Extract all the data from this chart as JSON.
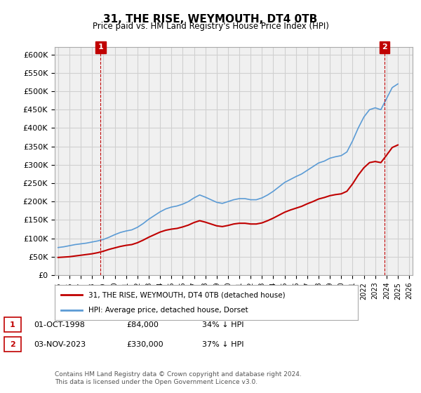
{
  "title": "31, THE RISE, WEYMOUTH, DT4 0TB",
  "subtitle": "Price paid vs. HM Land Registry's House Price Index (HPI)",
  "legend_entry1": "31, THE RISE, WEYMOUTH, DT4 0TB (detached house)",
  "legend_entry2": "HPI: Average price, detached house, Dorset",
  "annotation1_label": "1",
  "annotation1_date": "01-OCT-1998",
  "annotation1_price": "£84,000",
  "annotation1_hpi": "34% ↓ HPI",
  "annotation2_label": "2",
  "annotation2_date": "03-NOV-2023",
  "annotation2_price": "£330,000",
  "annotation2_hpi": "37% ↓ HPI",
  "footer": "Contains HM Land Registry data © Crown copyright and database right 2024.\nThis data is licensed under the Open Government Licence v3.0.",
  "hpi_color": "#5b9bd5",
  "price_color": "#c00000",
  "annotation_box_color": "#c00000",
  "grid_color": "#d0d0d0",
  "background_color": "#ffffff",
  "plot_bg_color": "#f0f0f0",
  "ylim": [
    0,
    620000
  ],
  "yticks": [
    0,
    50000,
    100000,
    150000,
    200000,
    250000,
    300000,
    350000,
    400000,
    450000,
    500000,
    550000,
    600000
  ],
  "xmin_year": 1995,
  "xmax_year": 2026,
  "xtick_years": [
    1995,
    1996,
    1997,
    1998,
    1999,
    2000,
    2001,
    2002,
    2003,
    2004,
    2005,
    2006,
    2007,
    2008,
    2009,
    2010,
    2011,
    2012,
    2013,
    2014,
    2015,
    2016,
    2017,
    2018,
    2019,
    2020,
    2021,
    2022,
    2023,
    2024,
    2025,
    2026
  ],
  "sale1_year": 1998.75,
  "sale1_value": 84000,
  "sale2_year": 2023.83,
  "sale2_value": 330000,
  "hpi_years": [
    1995,
    1995.5,
    1996,
    1996.5,
    1997,
    1997.5,
    1998,
    1998.5,
    1999,
    1999.5,
    2000,
    2000.5,
    2001,
    2001.5,
    2002,
    2002.5,
    2003,
    2003.5,
    2004,
    2004.5,
    2005,
    2005.5,
    2006,
    2006.5,
    2007,
    2007.5,
    2008,
    2008.5,
    2009,
    2009.5,
    2010,
    2010.5,
    2011,
    2011.5,
    2012,
    2012.5,
    2013,
    2013.5,
    2014,
    2014.5,
    2015,
    2015.5,
    2016,
    2016.5,
    2017,
    2017.5,
    2018,
    2018.5,
    2019,
    2019.5,
    2020,
    2020.5,
    2021,
    2021.5,
    2022,
    2022.5,
    2023,
    2023.5,
    2024,
    2024.5,
    2025
  ],
  "hpi_values": [
    75000,
    77000,
    80000,
    83000,
    85000,
    87000,
    90000,
    93000,
    97000,
    103000,
    110000,
    116000,
    120000,
    123000,
    130000,
    140000,
    152000,
    162000,
    172000,
    180000,
    185000,
    188000,
    193000,
    200000,
    210000,
    218000,
    212000,
    205000,
    198000,
    195000,
    200000,
    205000,
    208000,
    208000,
    205000,
    205000,
    210000,
    218000,
    228000,
    240000,
    252000,
    260000,
    268000,
    275000,
    285000,
    295000,
    305000,
    310000,
    318000,
    322000,
    325000,
    335000,
    365000,
    400000,
    430000,
    450000,
    455000,
    450000,
    480000,
    510000,
    520000
  ],
  "price_years": [
    1995,
    1995.5,
    1996,
    1996.5,
    1997,
    1997.5,
    1998,
    1998.5,
    1999,
    1999.5,
    2000,
    2000.5,
    2001,
    2001.5,
    2002,
    2002.5,
    2003,
    2003.5,
    2004,
    2004.5,
    2005,
    2005.5,
    2006,
    2006.5,
    2007,
    2007.5,
    2008,
    2008.5,
    2009,
    2009.5,
    2010,
    2010.5,
    2011,
    2011.5,
    2012,
    2012.5,
    2013,
    2013.5,
    2014,
    2014.5,
    2015,
    2015.5,
    2016,
    2016.5,
    2017,
    2017.5,
    2018,
    2018.5,
    2019,
    2019.5,
    2020,
    2020.5,
    2021,
    2021.5,
    2022,
    2022.5,
    2023,
    2023.5,
    2024,
    2024.5,
    2025
  ],
  "price_values": [
    48000,
    49000,
    50000,
    52000,
    54000,
    56000,
    58000,
    61000,
    65000,
    70000,
    74000,
    78000,
    81000,
    83000,
    88000,
    95000,
    103000,
    110000,
    117000,
    122000,
    125000,
    127000,
    131000,
    136000,
    143000,
    148000,
    144000,
    139000,
    134000,
    132000,
    135000,
    139000,
    141000,
    141000,
    139000,
    139000,
    142000,
    148000,
    155000,
    163000,
    171000,
    177000,
    182000,
    187000,
    194000,
    200000,
    207000,
    211000,
    216000,
    219000,
    221000,
    228000,
    248000,
    272000,
    292000,
    306000,
    309000,
    306000,
    326000,
    347000,
    354000
  ]
}
